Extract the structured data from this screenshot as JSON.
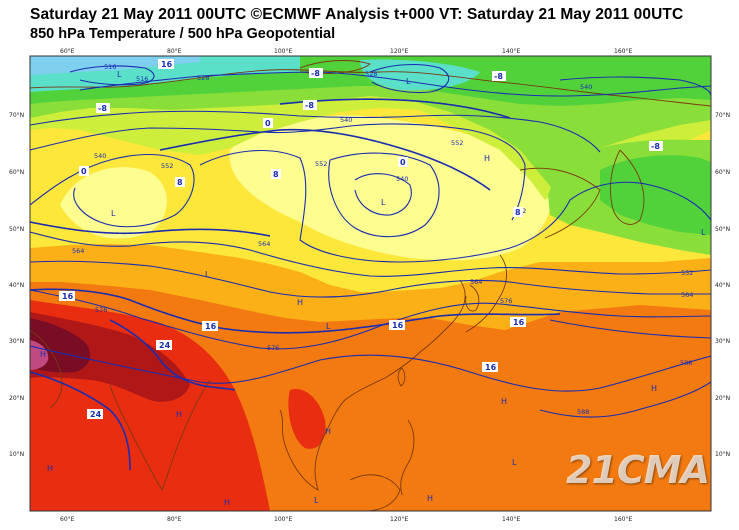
{
  "header": {
    "line1": "Saturday 21 May 2011 00UTC ©ECMWF Analysis t+000 VT: Saturday 21 May 2011 00UTC",
    "line2": "850 hPa Temperature / 500 hPa Geopotential"
  },
  "axes": {
    "lon_labels": [
      "60°E",
      "80°E",
      "100°E",
      "120°E",
      "140°E",
      "160°E"
    ],
    "lat_labels": [
      "70°N",
      "60°N",
      "50°N",
      "40°N",
      "30°N",
      "20°N",
      "10°N"
    ]
  },
  "pressure_centers": [
    "L",
    "L",
    "L",
    "L",
    "L",
    "H",
    "H",
    "H",
    "H",
    "H",
    "H",
    "H",
    "H",
    "H",
    "H",
    "L",
    "L",
    "L",
    "L"
  ],
  "geopotential_contours": [
    "516",
    "516",
    "528",
    "528",
    "540",
    "540",
    "540",
    "552",
    "552",
    "552",
    "552",
    "564",
    "564",
    "564",
    "576",
    "576",
    "576",
    "588",
    "588",
    "564",
    "552",
    "540"
  ],
  "temperature_labels": [
    "16",
    "-8",
    "-8",
    "-8",
    "0",
    "0",
    "-8",
    "8",
    "8",
    "0",
    "-8",
    "16",
    "24",
    "24",
    "16",
    "16",
    "16",
    "16",
    "8"
  ],
  "watermark": "21CMA",
  "colors": {
    "contour": "#1a2db0",
    "coast": "#7a3a10",
    "dark_red": "#b01818",
    "red": "#e82d10",
    "orange": "#f37a10",
    "orange_light": "#fbb018",
    "yellow": "#fde73a",
    "yellow_pale": "#fdfd90",
    "green_yellow": "#cdee3a",
    "green": "#8ade3a",
    "green_bright": "#52d23a",
    "cyan": "#5ae0c8",
    "sky": "#7fd0ef"
  }
}
